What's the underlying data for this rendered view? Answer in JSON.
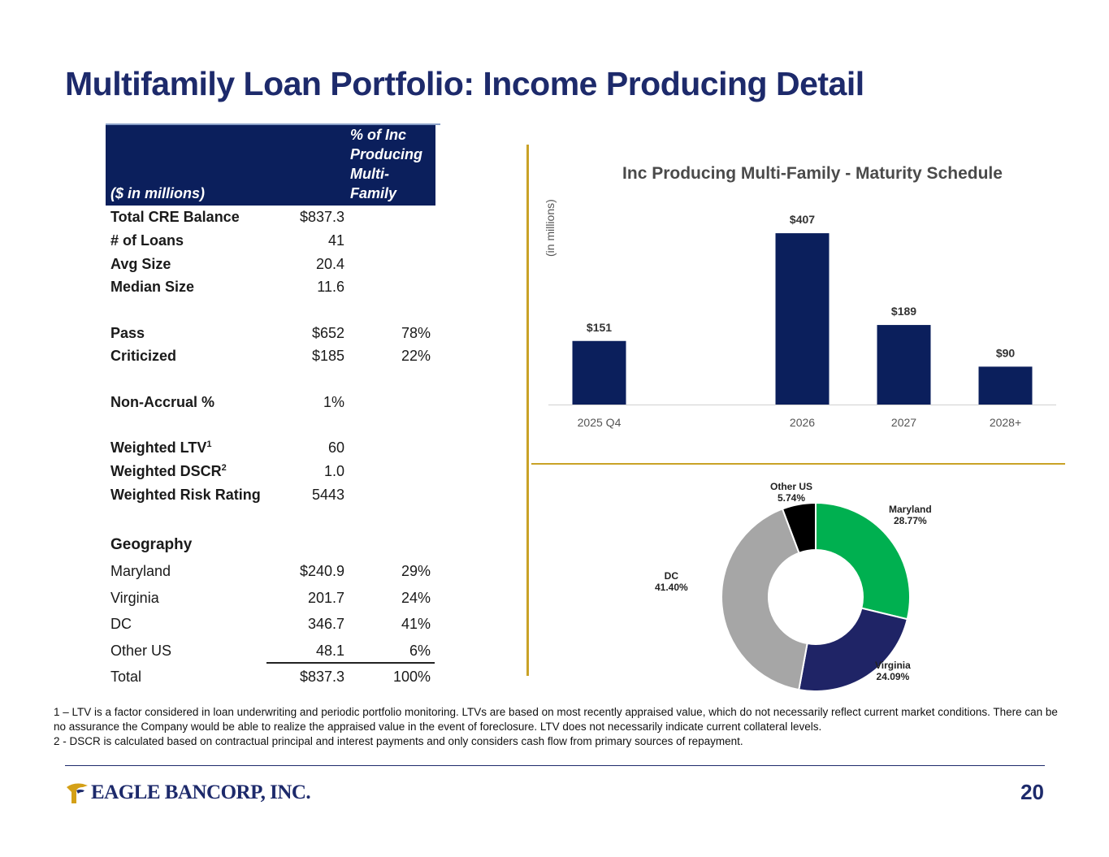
{
  "title": "Multifamily Loan Portfolio: Income Producing Detail",
  "table": {
    "header_units": "($ in millions)",
    "header_pct_lines": [
      "% of Inc",
      "Producing",
      "Multi-",
      "Family"
    ],
    "summary": [
      {
        "label": "Total CRE Balance",
        "value": "$837.3",
        "pct": ""
      },
      {
        "label": "# of Loans",
        "value": "41",
        "pct": ""
      },
      {
        "label": "Avg Size",
        "value": "20.4",
        "pct": ""
      },
      {
        "label": "Median Size",
        "value": "11.6",
        "pct": ""
      }
    ],
    "quality": [
      {
        "label": "Pass",
        "value": "$652",
        "pct": "78%"
      },
      {
        "label": "Criticized",
        "value": "$185",
        "pct": "22%"
      }
    ],
    "nonaccrual": {
      "label": "Non-Accrual %",
      "value": "1%",
      "pct": ""
    },
    "weighted": [
      {
        "label": "Weighted LTV",
        "sup": "1",
        "value": "60"
      },
      {
        "label": "Weighted DSCR",
        "sup": "2",
        "value": "1.0"
      },
      {
        "label": "Weighted Risk Rating",
        "sup": "",
        "value": "5443"
      }
    ],
    "geography_title": "Geography",
    "geography": [
      {
        "label": "Maryland",
        "value": "$240.9",
        "pct": "29%"
      },
      {
        "label": "Virginia",
        "value": "201.7",
        "pct": "24%"
      },
      {
        "label": "DC",
        "value": "346.7",
        "pct": "41%"
      },
      {
        "label": "Other US",
        "value": "48.1",
        "pct": "6%"
      },
      {
        "label": "Total",
        "value": "$837.3",
        "pct": "100%"
      }
    ]
  },
  "chart_data": [
    {
      "type": "bar",
      "title": "Inc Producing Multi-Family - Maturity Schedule",
      "ylabel": "(in millions)",
      "categories": [
        "2025 Q4",
        "",
        "2026",
        "2027",
        "2028+"
      ],
      "values": [
        151,
        null,
        407,
        189,
        90
      ],
      "data_labels": [
        "$151",
        "",
        "$407",
        "$189",
        "$90"
      ],
      "ylim": [
        0,
        440
      ],
      "grid": false,
      "color": "#0b1f5c"
    },
    {
      "type": "pie",
      "style": "donut",
      "slices": [
        {
          "name": "Maryland",
          "value": 28.77,
          "label": "28.77%",
          "color": "#00b050"
        },
        {
          "name": "Virginia",
          "value": 24.09,
          "label": "24.09%",
          "color": "#1f2466"
        },
        {
          "name": "DC",
          "value": 41.4,
          "label": "41.40%",
          "color": "#a6a6a6"
        },
        {
          "name": "Other US",
          "value": 5.74,
          "label": "5.74%",
          "color": "#000000"
        }
      ]
    }
  ],
  "footnotes": [
    "1 – LTV is a factor considered in loan underwriting and periodic portfolio monitoring. LTVs are based on most recently appraised value, which do not necessarily reflect current market conditions. There can be no assurance the Company would be able to realize the appraised value in the event of foreclosure. LTV does not necessarily indicate current collateral levels.",
    "2 - DSCR is calculated based on contractual principal and interest payments and only considers cash flow from primary sources of repayment."
  ],
  "logo_text": "EAGLE BANCORP, INC.",
  "page_number": "20"
}
